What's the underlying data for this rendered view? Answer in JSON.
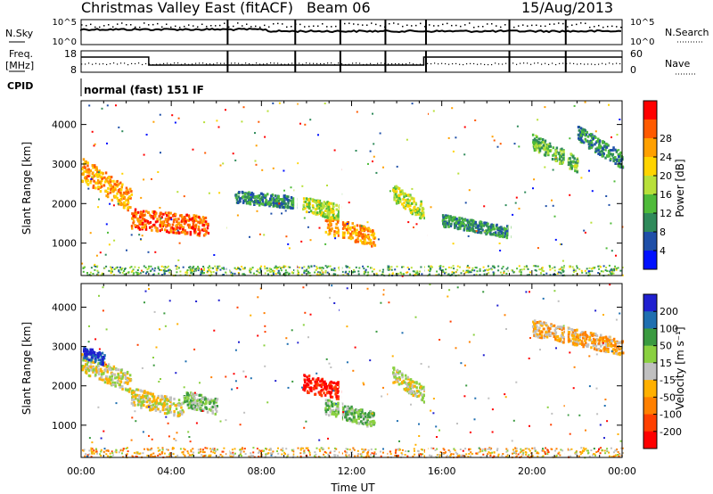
{
  "header": {
    "title": "Christmas Valley East (fitACF)",
    "beam": "Beam 06",
    "date": "15/Aug/2013"
  },
  "strips": {
    "nsky": {
      "label": "N.Sky",
      "ticks": [
        "10^5",
        "10^0"
      ]
    },
    "nsearch": {
      "label": "N.Search",
      "ticks": [
        "10^5",
        "10^0"
      ]
    },
    "freq": {
      "label_line1": "Freq.",
      "label_line2": "[MHz]",
      "ticks": [
        "18",
        "8"
      ]
    },
    "nave": {
      "label": "Nave",
      "ticks": [
        "60",
        "0"
      ]
    },
    "cpid": {
      "label": "CPID",
      "value": "normal (fast) 151 IF"
    }
  },
  "colors": {
    "power_scale": [
      "#0010ff",
      "#1f4fa8",
      "#2f8a5a",
      "#4fbb3a",
      "#b8e03a",
      "#ffd400",
      "#ffa000",
      "#ff5a00",
      "#ff0000"
    ],
    "velocity_scale": [
      "#2020d0",
      "#1f6fb0",
      "#3a9a40",
      "#8ad040",
      "#c0c0c0",
      "#ffb000",
      "#ff8000",
      "#ff4000",
      "#ff0000"
    ]
  },
  "chart_data": [
    {
      "type": "heatmap",
      "panel": "power",
      "ylabel": "Slant Range [km]",
      "yticks": [
        "1000",
        "2000",
        "3000",
        "4000"
      ],
      "ylim": [
        180,
        4600
      ],
      "xlim": [
        0,
        24
      ],
      "colorbar_label": "Power [dB]",
      "colorbar_ticks": [
        "4",
        "8",
        "12",
        "16",
        "20",
        "24",
        "28"
      ],
      "bands": [
        {
          "t0": 0.0,
          "t1": 2.2,
          "r0": 2900,
          "r1": 2100,
          "width": 600,
          "level": 6
        },
        {
          "t0": 2.2,
          "t1": 5.6,
          "r0": 1650,
          "r1": 1450,
          "width": 500,
          "level": 7
        },
        {
          "t0": 10.8,
          "t1": 13.0,
          "r0": 1500,
          "r1": 1150,
          "width": 450,
          "level": 6
        },
        {
          "t0": 9.8,
          "t1": 11.5,
          "r0": 2000,
          "r1": 1800,
          "width": 400,
          "level": 4
        },
        {
          "t0": 13.8,
          "t1": 15.2,
          "r0": 2300,
          "r1": 1800,
          "width": 450,
          "level": 4
        },
        {
          "t0": 6.8,
          "t1": 9.5,
          "r0": 2200,
          "r1": 2050,
          "width": 300,
          "level": 2
        },
        {
          "t0": 16.0,
          "t1": 19.0,
          "r0": 1600,
          "r1": 1300,
          "width": 300,
          "level": 2
        },
        {
          "t0": 20.0,
          "t1": 22.0,
          "r0": 3600,
          "r1": 3000,
          "width": 400,
          "level": 3
        },
        {
          "t0": 22.0,
          "t1": 24.0,
          "r0": 3800,
          "r1": 3100,
          "width": 400,
          "level": 2
        }
      ],
      "near_range": {
        "r0": 200,
        "r1": 450,
        "level": 3
      }
    },
    {
      "type": "heatmap",
      "panel": "velocity",
      "ylabel": "Slant Range [km]",
      "xlabel": "Time UT",
      "yticks": [
        "1000",
        "2000",
        "3000",
        "4000"
      ],
      "xticks": [
        "00:00",
        "04:00",
        "08:00",
        "12:00",
        "16:00",
        "20:00",
        "00:00"
      ],
      "ylim": [
        180,
        4600
      ],
      "xlim": [
        0,
        24
      ],
      "colorbar_label": "Velocity [m s⁻¹]",
      "colorbar_ticks": [
        "200",
        "100",
        "50",
        "15",
        "-15",
        "-50",
        "-100",
        "-200"
      ],
      "bands": [
        {
          "t0": 0.0,
          "t1": 2.2,
          "r0": 2600,
          "r1": 2100,
          "width": 500,
          "level": 4
        },
        {
          "t0": 0.0,
          "t1": 1.0,
          "r0": 2900,
          "r1": 2700,
          "width": 300,
          "level": 0
        },
        {
          "t0": 2.2,
          "t1": 4.5,
          "r0": 1750,
          "r1": 1450,
          "width": 450,
          "level": 4
        },
        {
          "t0": 4.5,
          "t1": 6.0,
          "r0": 1700,
          "r1": 1500,
          "width": 400,
          "level": 3
        },
        {
          "t0": 10.8,
          "t1": 13.0,
          "r0": 1500,
          "r1": 1150,
          "width": 400,
          "level": 3
        },
        {
          "t0": 9.8,
          "t1": 11.5,
          "r0": 2100,
          "r1": 1900,
          "width": 450,
          "level": 8
        },
        {
          "t0": 13.8,
          "t1": 15.2,
          "r0": 2300,
          "r1": 1800,
          "width": 400,
          "level": 4
        },
        {
          "t0": 20.0,
          "t1": 24.0,
          "r0": 3500,
          "r1": 3000,
          "width": 400,
          "level": 5
        }
      ],
      "near_range": {
        "r0": 200,
        "r1": 450,
        "level": 5
      }
    }
  ]
}
